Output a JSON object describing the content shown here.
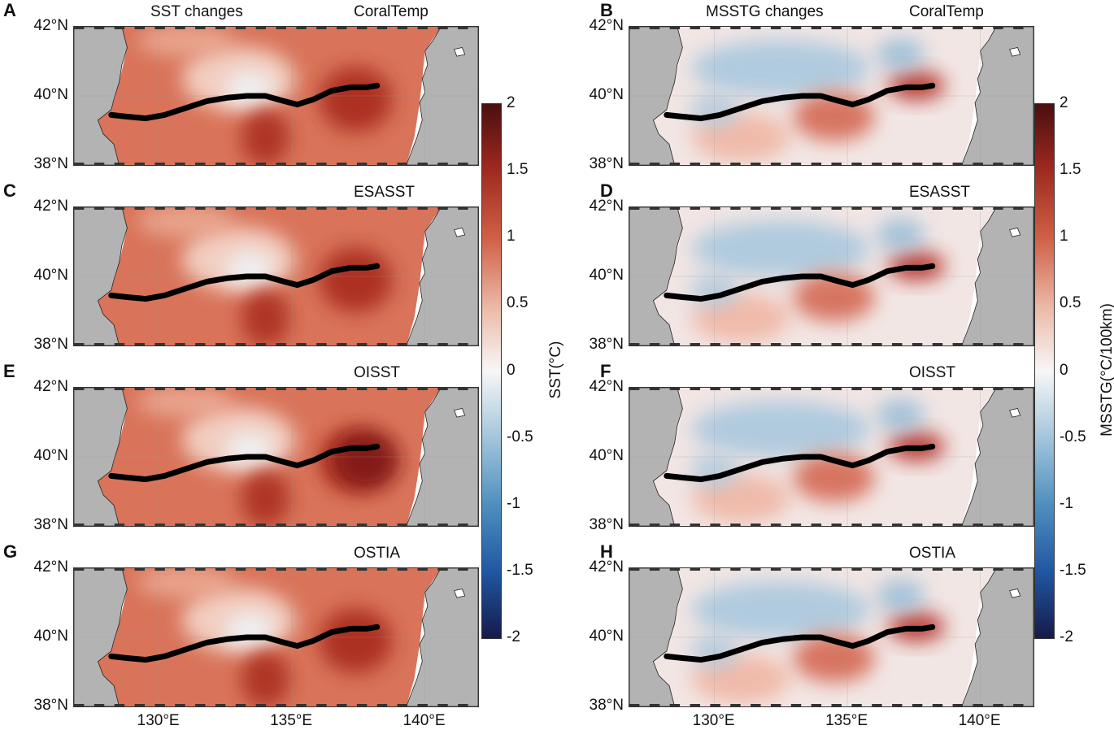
{
  "panels": [
    {
      "letter": "A",
      "title_left": "SST changes",
      "title_right": "CoralTemp",
      "kind": "sst"
    },
    {
      "letter": "B",
      "title_left": "MSSTG changes",
      "title_right": "CoralTemp",
      "kind": "g"
    },
    {
      "letter": "C",
      "title_left": "",
      "title_right": "ESASST",
      "kind": "sst"
    },
    {
      "letter": "D",
      "title_left": "",
      "title_right": "ESASST",
      "kind": "g"
    },
    {
      "letter": "E",
      "title_left": "",
      "title_right": "OISST",
      "kind": "sst"
    },
    {
      "letter": "F",
      "title_left": "",
      "title_right": "OISST",
      "kind": "g"
    },
    {
      "letter": "G",
      "title_left": "",
      "title_right": "OSTIA",
      "kind": "sst"
    },
    {
      "letter": "H",
      "title_left": "",
      "title_right": "OSTIA",
      "kind": "g"
    }
  ],
  "lat_labels": [
    "42°N",
    "40°N",
    "38°N"
  ],
  "lon_labels": [
    "130°E",
    "135°E",
    "140°E"
  ],
  "colorbar_sst": {
    "title": "SST(°C)",
    "ticks": [
      "2",
      "1.5",
      "1",
      "0.5",
      "0",
      "-0.5",
      "-1",
      "-1.5",
      "-2"
    ]
  },
  "colorbar_g": {
    "title": "MSSTG(°C/100km)",
    "ticks": [
      "2",
      "1.5",
      "1",
      "0.5",
      "0",
      "-0.5",
      "-1",
      "-1.5",
      "-2"
    ]
  },
  "front_line": {
    "lon": [
      128.2,
      128.8,
      129.5,
      130.2,
      131.0,
      131.8,
      132.6,
      133.3,
      134.0,
      134.7,
      135.2,
      135.8,
      136.5,
      137.2,
      137.8,
      138.2
    ],
    "lat": [
      39.45,
      39.4,
      39.35,
      39.45,
      39.65,
      39.85,
      39.95,
      40.0,
      40.0,
      39.85,
      39.75,
      39.9,
      40.15,
      40.25,
      40.25,
      40.3
    ]
  }
}
